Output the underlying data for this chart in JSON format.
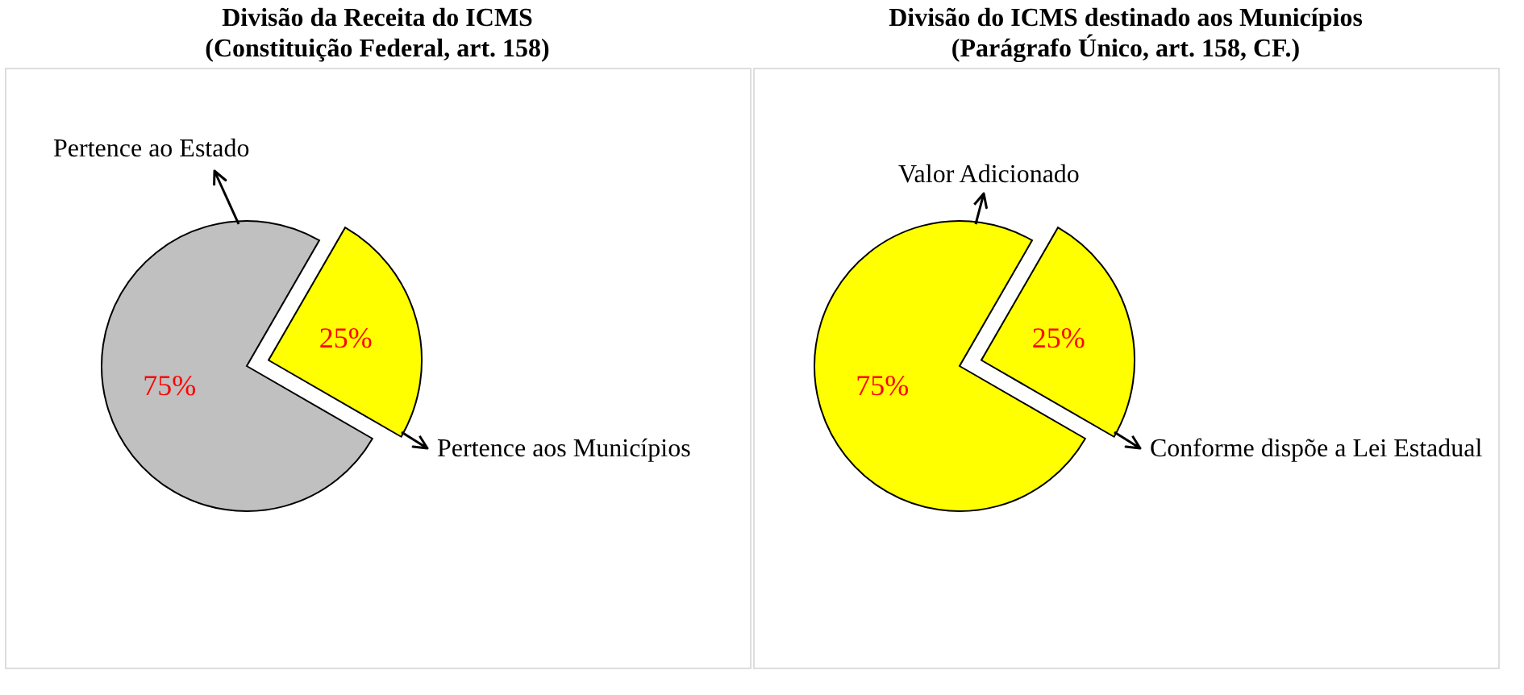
{
  "chart_data": [
    {
      "type": "pie",
      "title": "Divisão da Receita do ICMS",
      "subtitle": "(Constituição  Federal, art. 158)",
      "categories": [
        "Pertence ao Estado",
        "Pertence aos Municípios"
      ],
      "values": [
        75,
        25
      ],
      "colors": [
        "#c0c0c0",
        "#ffff00"
      ],
      "value_labels": [
        "75%",
        "25%"
      ]
    },
    {
      "type": "pie",
      "title": "Divisão do ICMS destinado aos Municípios",
      "subtitle": "(Parágrafo Único, art. 158, CF.)",
      "categories": [
        "Valor  Adicionado",
        "Conforme dispõe a Lei Estadual"
      ],
      "values": [
        75,
        25
      ],
      "colors": [
        "#ffff00",
        "#ffff00"
      ],
      "value_labels": [
        "75%",
        "25%"
      ]
    }
  ]
}
